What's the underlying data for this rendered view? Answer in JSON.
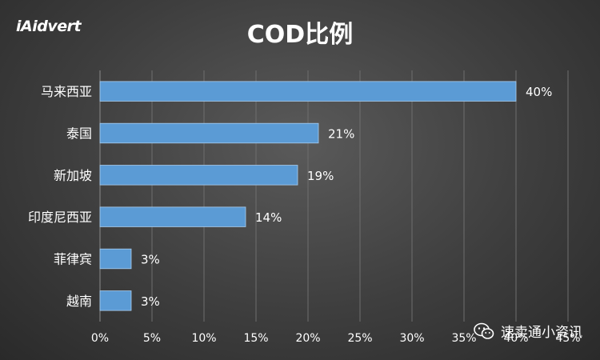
{
  "logo_text": "iAidvert",
  "watermark": {
    "text": "速卖通小资讯",
    "icon": "wechat-icon"
  },
  "chart_data": {
    "type": "bar",
    "orientation": "horizontal",
    "title": "COD比例",
    "categories": [
      "马来西亚",
      "泰国",
      "新加坡",
      "印度尼西亚",
      "菲律宾",
      "越南"
    ],
    "values": [
      40,
      21,
      19,
      14,
      3,
      3
    ],
    "value_labels": [
      "40%",
      "21%",
      "19%",
      "14%",
      "3%",
      "3%"
    ],
    "xlim": [
      0,
      45
    ],
    "x_ticks": [
      "0%",
      "5%",
      "10%",
      "15%",
      "20%",
      "25%",
      "30%",
      "35%",
      "40%",
      "45%"
    ],
    "grid": true,
    "legend": "none",
    "bar_color": "#5b9bd5",
    "text_color": "#ffffff"
  }
}
